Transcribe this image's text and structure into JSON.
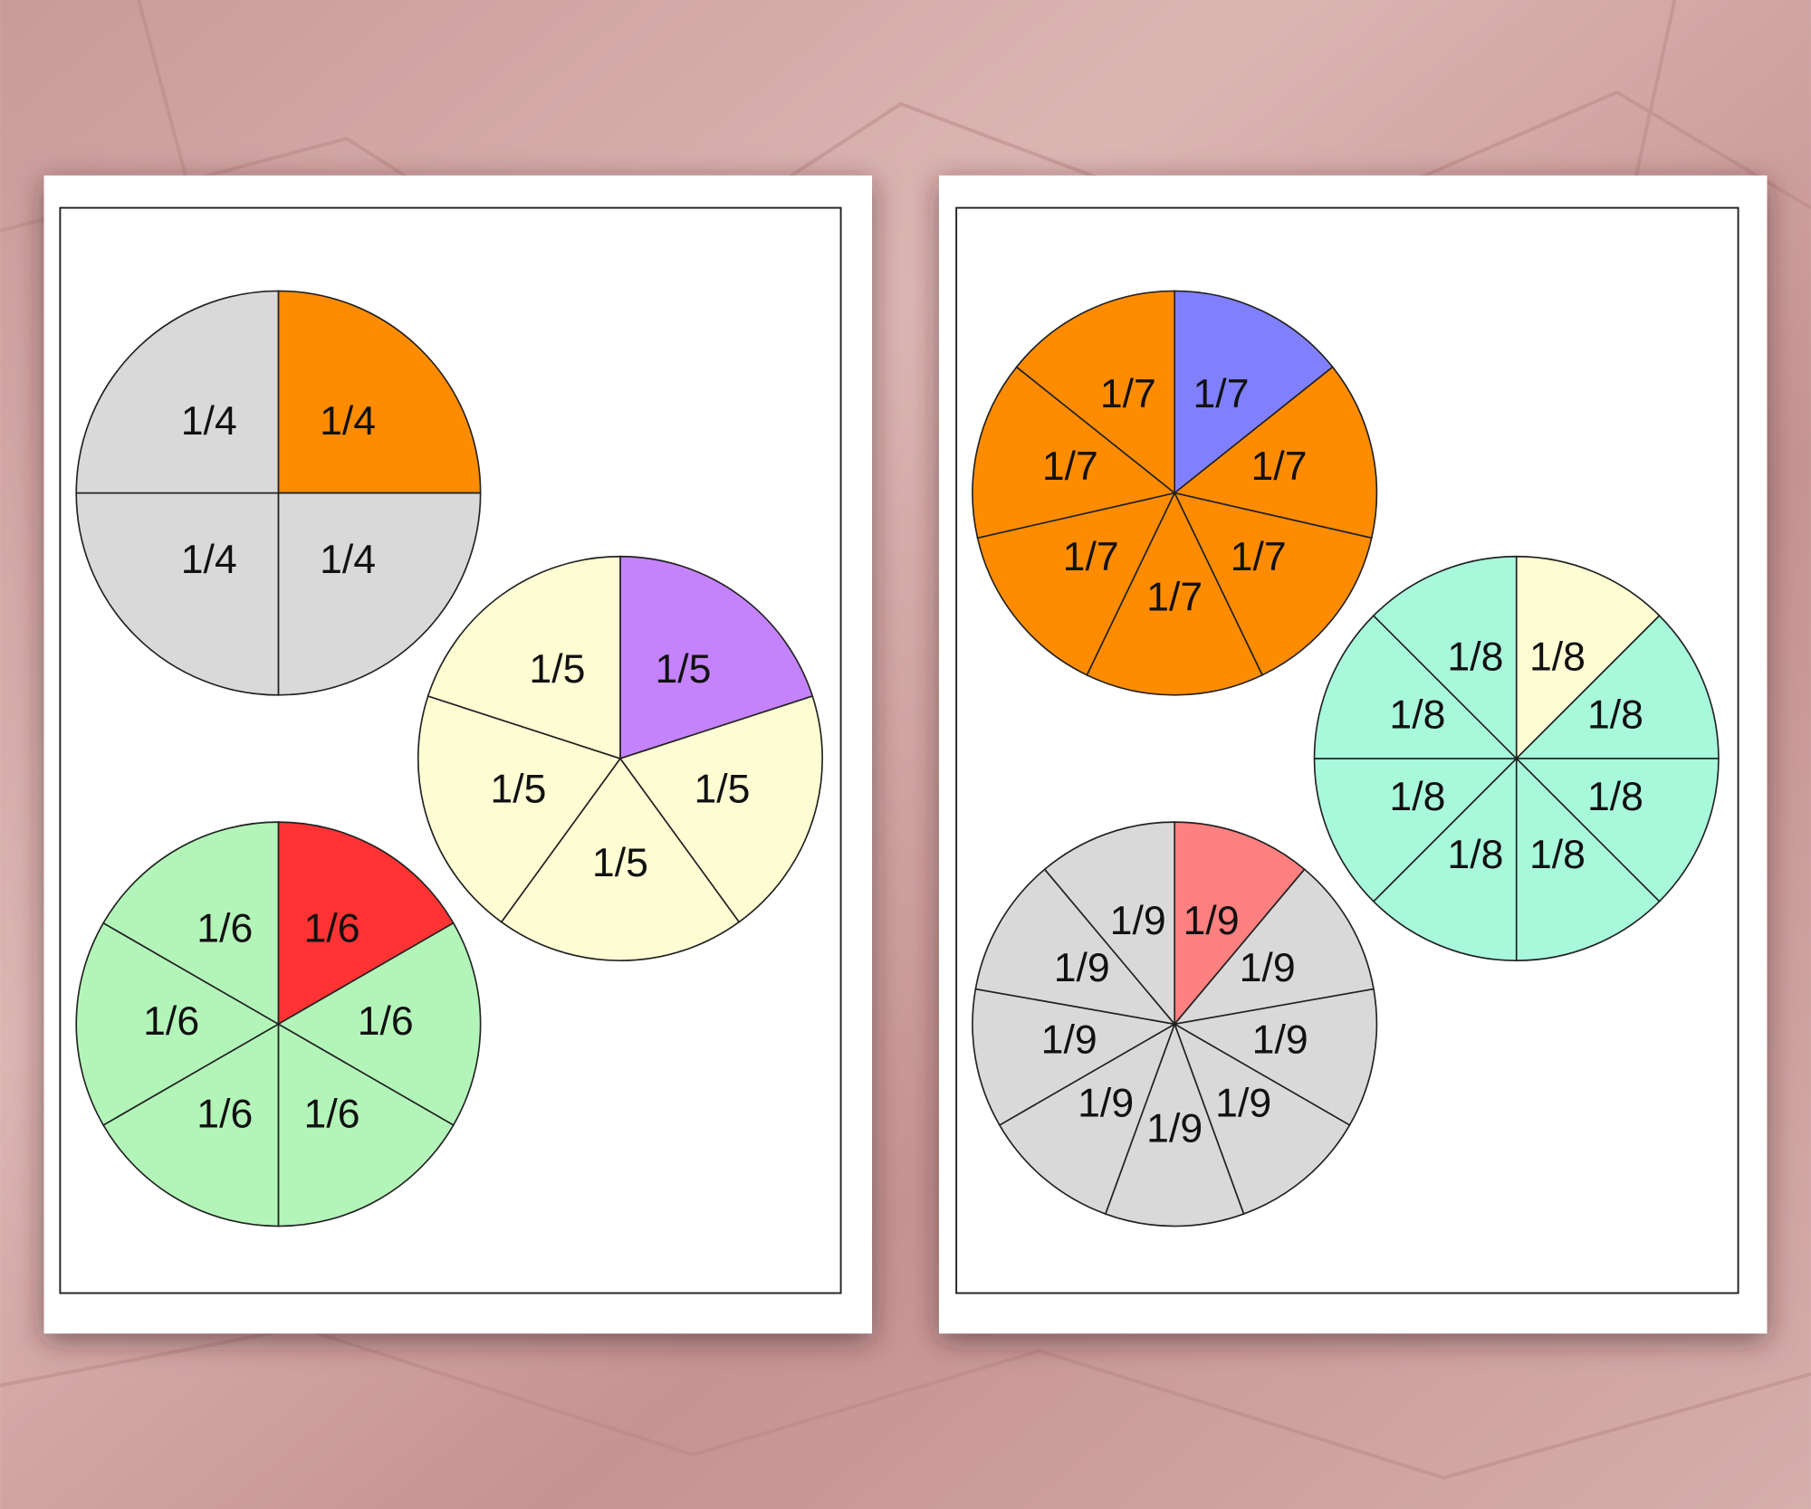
{
  "pages": [
    {
      "circles": [
        {
          "labels": [
            "1/4",
            "1/4",
            "1/4",
            "1/4"
          ],
          "base_color": "#d9d9d9",
          "highlight_color": "#ff8c00"
        },
        {
          "labels": [
            "1/5",
            "1/5",
            "1/5",
            "1/5",
            "1/5"
          ],
          "base_color": "#fdfcd3",
          "highlight_color": "#c583fb"
        },
        {
          "labels": [
            "1/6",
            "1/6",
            "1/6",
            "1/6",
            "1/6",
            "1/6"
          ],
          "base_color": "#b3f5b9",
          "highlight_color": "#ff3333"
        }
      ]
    },
    {
      "circles": [
        {
          "labels": [
            "1/7",
            "1/7",
            "1/7",
            "1/7",
            "1/7",
            "1/7",
            "1/7"
          ],
          "base_color": "#ff8c00",
          "highlight_color": "#8080ff"
        },
        {
          "labels": [
            "1/8",
            "1/8",
            "1/8",
            "1/8",
            "1/8",
            "1/8",
            "1/8",
            "1/8"
          ],
          "base_color": "#a8f8dc",
          "highlight_color": "#fdfcd3"
        },
        {
          "labels": [
            "1/9",
            "1/9",
            "1/9",
            "1/9",
            "1/9",
            "1/9",
            "1/9",
            "1/9",
            "1/9"
          ],
          "base_color": "#d9d9d9",
          "highlight_color": "#ff8080"
        }
      ]
    }
  ]
}
